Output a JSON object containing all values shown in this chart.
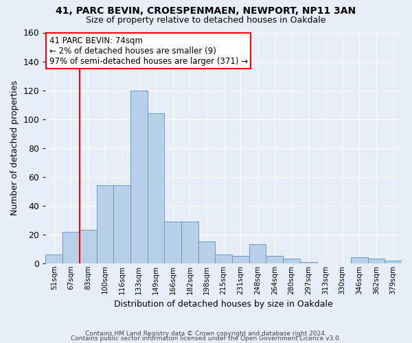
{
  "title_line1": "41, PARC BEVIN, CROESPENMAEN, NEWPORT, NP11 3AN",
  "title_line2": "Size of property relative to detached houses in Oakdale",
  "xlabel": "Distribution of detached houses by size in Oakdale",
  "ylabel": "Number of detached properties",
  "bar_values": [
    6,
    22,
    23,
    54,
    54,
    120,
    104,
    29,
    29,
    15,
    6,
    5,
    13,
    5,
    3,
    1,
    0,
    0,
    4,
    3,
    2
  ],
  "bar_labels": [
    "51sqm",
    "67sqm",
    "83sqm",
    "100sqm",
    "116sqm",
    "133sqm",
    "149sqm",
    "166sqm",
    "182sqm",
    "198sqm",
    "215sqm",
    "231sqm",
    "248sqm",
    "264sqm",
    "280sqm",
    "297sqm",
    "313sqm",
    "330sqm",
    "346sqm",
    "362sqm",
    "379sqm"
  ],
  "bar_color": "#b8d0e8",
  "bar_edge_color": "#6699cc",
  "ylim": [
    0,
    160
  ],
  "yticks": [
    0,
    20,
    40,
    60,
    80,
    100,
    120,
    140,
    160
  ],
  "red_line_x": 1.5,
  "annotation_text": "41 PARC BEVIN: 74sqm\n← 2% of detached houses are smaller (9)\n97% of semi-detached houses are larger (371) →",
  "footer_line1": "Contains HM Land Registry data © Crown copyright and database right 2024.",
  "footer_line2": "Contains public sector information licensed under the Open Government Licence v3.0.",
  "bg_color": "#e8eef7",
  "plot_bg_color": "#e8eef7"
}
